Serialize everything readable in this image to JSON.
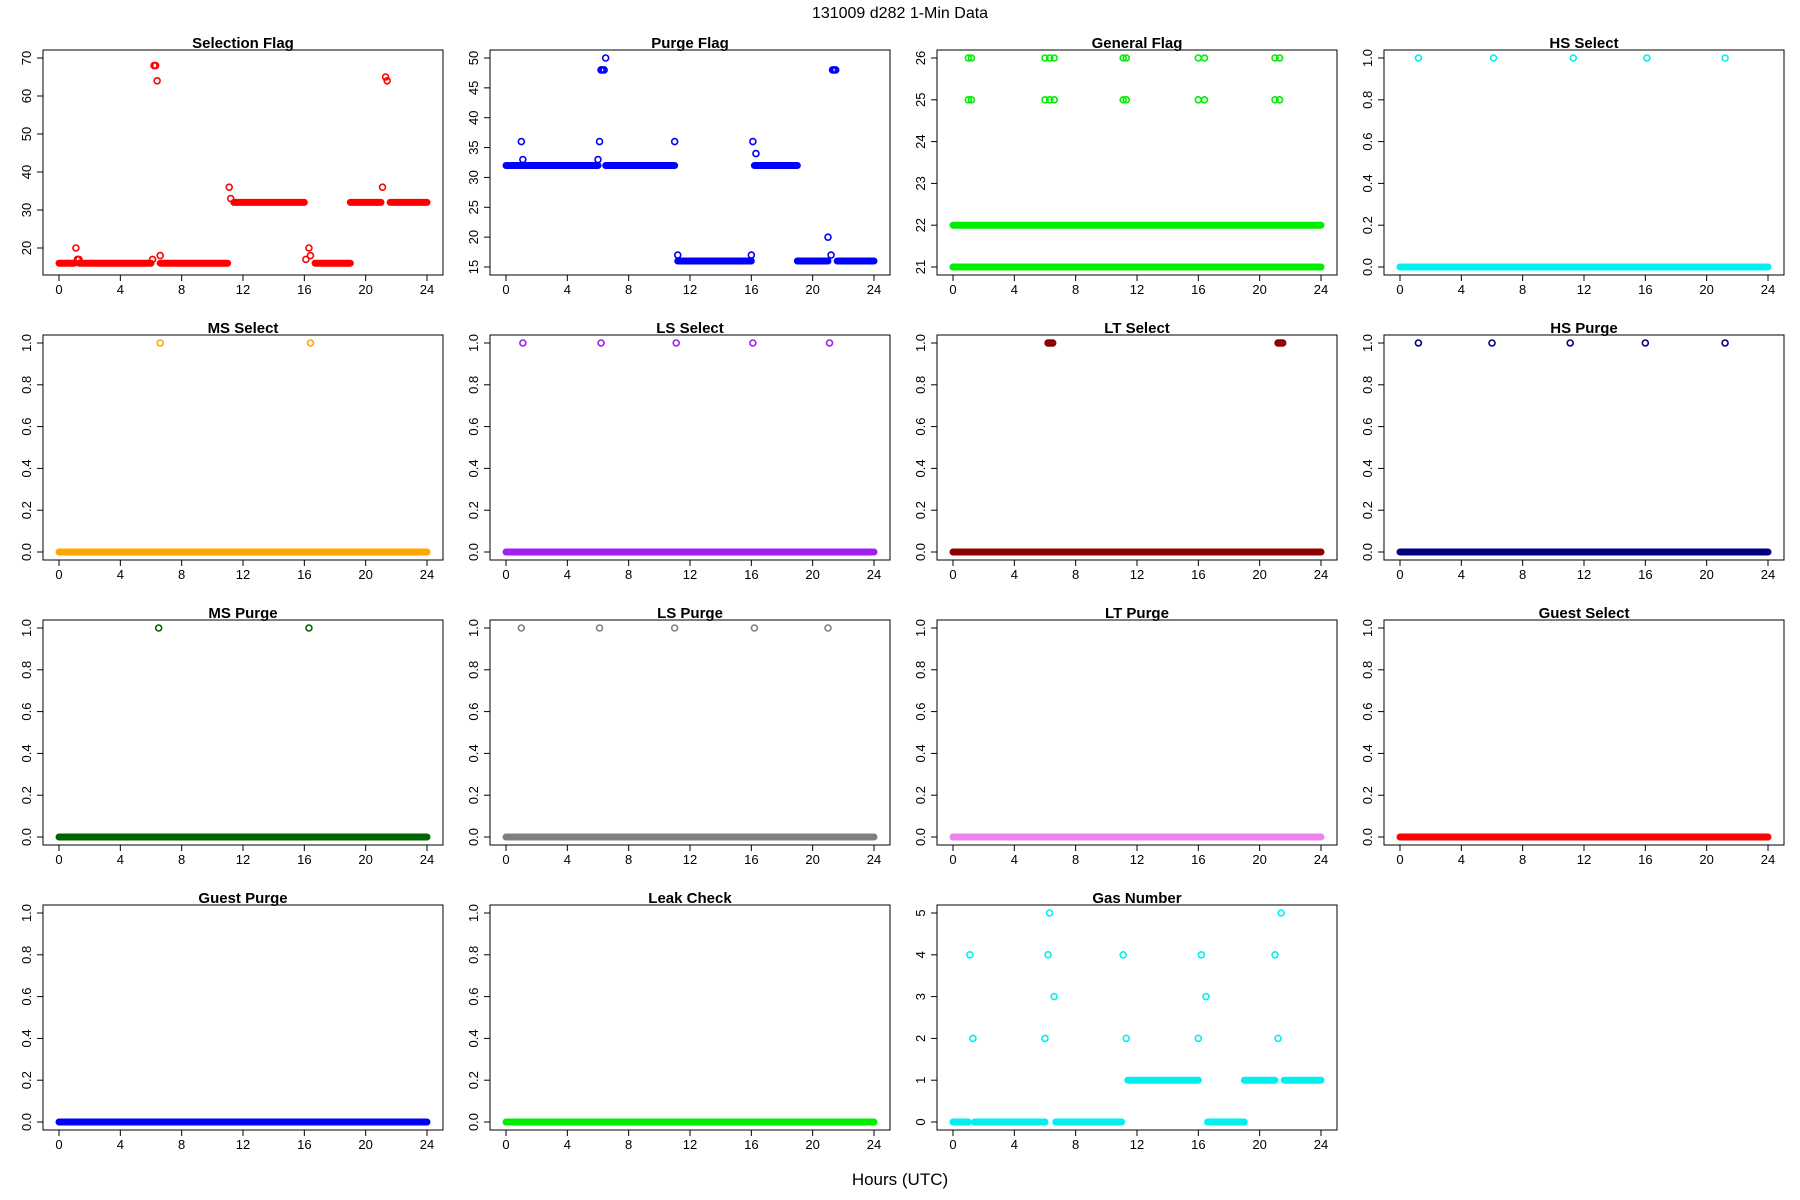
{
  "page": {
    "title": "131009   d282   1-Min Data",
    "xlabel": "Hours (UTC)"
  },
  "chart_data": [
    {
      "type": "scatter",
      "title": "Selection Flag",
      "color": "#ff0000",
      "xlim": [
        0,
        24
      ],
      "xticks": [
        0,
        4,
        8,
        12,
        16,
        20,
        24
      ],
      "ylim": [
        15,
        70
      ],
      "yticks": [
        20,
        30,
        40,
        50,
        60,
        70
      ],
      "runs": [
        {
          "x": [
            0,
            1.0
          ],
          "y": 16
        },
        {
          "x": 1.3,
          "y": 17
        },
        {
          "x": [
            1.3,
            6.0
          ],
          "y": 16
        },
        {
          "x": [
            6.6,
            11.0
          ],
          "y": 16
        },
        {
          "x": [
            11.4,
            16.0
          ],
          "y": 32
        },
        {
          "x": [
            16.7,
            19.0
          ],
          "y": 16
        },
        {
          "x": [
            19.0,
            21.0
          ],
          "y": 32
        },
        {
          "x": [
            21.6,
            24
          ],
          "y": 32
        }
      ],
      "points": [
        [
          1.1,
          20
        ],
        [
          1.2,
          17
        ],
        [
          6.1,
          17
        ],
        [
          6.2,
          68
        ],
        [
          6.3,
          68
        ],
        [
          6.4,
          64
        ],
        [
          6.6,
          18
        ],
        [
          11.1,
          36
        ],
        [
          11.2,
          33
        ],
        [
          16.1,
          17
        ],
        [
          16.3,
          20
        ],
        [
          16.4,
          18
        ],
        [
          21.1,
          36
        ],
        [
          21.3,
          65
        ],
        [
          21.4,
          64
        ]
      ]
    },
    {
      "type": "scatter",
      "title": "Purge Flag",
      "color": "#0000ff",
      "xlim": [
        0,
        24
      ],
      "xticks": [
        0,
        4,
        8,
        12,
        16,
        20,
        24
      ],
      "ylim": [
        15,
        50
      ],
      "yticks": [
        15,
        20,
        25,
        30,
        35,
        40,
        45,
        50
      ],
      "runs": [
        {
          "x": [
            0,
            6.0
          ],
          "y": 32
        },
        {
          "x": [
            6.5,
            11.0
          ],
          "y": 32
        },
        {
          "x": [
            11.2,
            16.0
          ],
          "y": 16
        },
        {
          "x": [
            16.2,
            19.0
          ],
          "y": 32
        },
        {
          "x": [
            19.0,
            21.0
          ],
          "y": 16
        },
        {
          "x": [
            21.6,
            24
          ],
          "y": 16
        }
      ],
      "points": [
        [
          1.0,
          36
        ],
        [
          1.1,
          33
        ],
        [
          6.1,
          36
        ],
        [
          6.0,
          33
        ],
        [
          6.2,
          48
        ],
        [
          6.3,
          48
        ],
        [
          6.4,
          48
        ],
        [
          6.5,
          50
        ],
        [
          11.0,
          36
        ],
        [
          11.2,
          17
        ],
        [
          16.0,
          17
        ],
        [
          16.1,
          36
        ],
        [
          16.3,
          34
        ],
        [
          21.0,
          20
        ],
        [
          21.2,
          17
        ],
        [
          21.3,
          48
        ],
        [
          21.4,
          48
        ],
        [
          21.5,
          48
        ]
      ]
    },
    {
      "type": "scatter",
      "title": "General Flag",
      "color": "#00ee00",
      "xlim": [
        0,
        24
      ],
      "xticks": [
        0,
        4,
        8,
        12,
        16,
        20,
        24
      ],
      "ylim": [
        21,
        26
      ],
      "yticks": [
        21,
        22,
        23,
        24,
        25,
        26
      ],
      "runs": [
        {
          "x": [
            0,
            24
          ],
          "y": 22
        },
        {
          "x": [
            0,
            24
          ],
          "y": 21
        }
      ],
      "points": [
        [
          1.0,
          26
        ],
        [
          1.2,
          26
        ],
        [
          1.0,
          25
        ],
        [
          1.2,
          25
        ],
        [
          6.0,
          26
        ],
        [
          6.3,
          26
        ],
        [
          6.6,
          26
        ],
        [
          6.0,
          25
        ],
        [
          6.3,
          25
        ],
        [
          6.6,
          25
        ],
        [
          11.1,
          26
        ],
        [
          11.3,
          26
        ],
        [
          11.1,
          25
        ],
        [
          11.3,
          25
        ],
        [
          16.0,
          26
        ],
        [
          16.4,
          26
        ],
        [
          16.0,
          25
        ],
        [
          16.4,
          25
        ],
        [
          21.0,
          26
        ],
        [
          21.3,
          26
        ],
        [
          21.0,
          25
        ],
        [
          21.3,
          25
        ]
      ]
    },
    {
      "type": "scatter",
      "title": "HS Select",
      "color": "#00f0f0",
      "xlim": [
        0,
        24
      ],
      "xticks": [
        0,
        4,
        8,
        12,
        16,
        20,
        24
      ],
      "ylim": [
        0,
        1
      ],
      "yticks": [
        0.0,
        0.2,
        0.4,
        0.6,
        0.8,
        1.0
      ],
      "runs": [
        {
          "x": [
            0,
            24
          ],
          "y": 0
        }
      ],
      "points": [
        [
          1.2,
          1
        ],
        [
          6.1,
          1
        ],
        [
          11.3,
          1
        ],
        [
          16.1,
          1
        ],
        [
          21.2,
          1
        ]
      ]
    },
    {
      "type": "scatter",
      "title": "MS Select",
      "color": "#ffa500",
      "xlim": [
        0,
        24
      ],
      "xticks": [
        0,
        4,
        8,
        12,
        16,
        20,
        24
      ],
      "ylim": [
        0,
        1
      ],
      "yticks": [
        0.0,
        0.2,
        0.4,
        0.6,
        0.8,
        1.0
      ],
      "runs": [
        {
          "x": [
            0,
            24
          ],
          "y": 0
        }
      ],
      "points": [
        [
          6.6,
          1
        ],
        [
          16.4,
          1
        ]
      ]
    },
    {
      "type": "scatter",
      "title": "LS Select",
      "color": "#a020f0",
      "xlim": [
        0,
        24
      ],
      "xticks": [
        0,
        4,
        8,
        12,
        16,
        20,
        24
      ],
      "ylim": [
        0,
        1
      ],
      "yticks": [
        0.0,
        0.2,
        0.4,
        0.6,
        0.8,
        1.0
      ],
      "runs": [
        {
          "x": [
            0,
            24
          ],
          "y": 0
        }
      ],
      "points": [
        [
          1.1,
          1
        ],
        [
          6.2,
          1
        ],
        [
          11.1,
          1
        ],
        [
          16.1,
          1
        ],
        [
          21.1,
          1
        ]
      ]
    },
    {
      "type": "scatter",
      "title": "LT Select",
      "color": "#8b0000",
      "xlim": [
        0,
        24
      ],
      "xticks": [
        0,
        4,
        8,
        12,
        16,
        20,
        24
      ],
      "ylim": [
        0,
        1
      ],
      "yticks": [
        0.0,
        0.2,
        0.4,
        0.6,
        0.8,
        1.0
      ],
      "runs": [
        {
          "x": [
            0,
            24
          ],
          "y": 0
        }
      ],
      "points": [
        [
          6.2,
          1
        ],
        [
          6.3,
          1
        ],
        [
          6.4,
          1
        ],
        [
          6.5,
          1
        ],
        [
          21.2,
          1
        ],
        [
          21.3,
          1
        ],
        [
          21.4,
          1
        ],
        [
          21.5,
          1
        ]
      ]
    },
    {
      "type": "scatter",
      "title": "HS Purge",
      "color": "#000080",
      "xlim": [
        0,
        24
      ],
      "xticks": [
        0,
        4,
        8,
        12,
        16,
        20,
        24
      ],
      "ylim": [
        0,
        1
      ],
      "yticks": [
        0.0,
        0.2,
        0.4,
        0.6,
        0.8,
        1.0
      ],
      "runs": [
        {
          "x": [
            0,
            24
          ],
          "y": 0
        }
      ],
      "points": [
        [
          1.2,
          1
        ],
        [
          6.0,
          1
        ],
        [
          11.1,
          1
        ],
        [
          16.0,
          1
        ],
        [
          21.2,
          1
        ]
      ]
    },
    {
      "type": "scatter",
      "title": "MS Purge",
      "color": "#006400",
      "xlim": [
        0,
        24
      ],
      "xticks": [
        0,
        4,
        8,
        12,
        16,
        20,
        24
      ],
      "ylim": [
        0,
        1
      ],
      "yticks": [
        0.0,
        0.2,
        0.4,
        0.6,
        0.8,
        1.0
      ],
      "runs": [
        {
          "x": [
            0,
            24
          ],
          "y": 0
        }
      ],
      "points": [
        [
          6.5,
          1
        ],
        [
          16.3,
          1
        ]
      ]
    },
    {
      "type": "scatter",
      "title": "LS Purge",
      "color": "#808080",
      "xlim": [
        0,
        24
      ],
      "xticks": [
        0,
        4,
        8,
        12,
        16,
        20,
        24
      ],
      "ylim": [
        0,
        1
      ],
      "yticks": [
        0.0,
        0.2,
        0.4,
        0.6,
        0.8,
        1.0
      ],
      "runs": [
        {
          "x": [
            0,
            24
          ],
          "y": 0
        }
      ],
      "points": [
        [
          1.0,
          1
        ],
        [
          6.1,
          1
        ],
        [
          11.0,
          1
        ],
        [
          16.2,
          1
        ],
        [
          21.0,
          1
        ]
      ]
    },
    {
      "type": "scatter",
      "title": "LT Purge",
      "color": "#ee82ee",
      "xlim": [
        0,
        24
      ],
      "xticks": [
        0,
        4,
        8,
        12,
        16,
        20,
        24
      ],
      "ylim": [
        0,
        1
      ],
      "yticks": [
        0.0,
        0.2,
        0.4,
        0.6,
        0.8,
        1.0
      ],
      "runs": [
        {
          "x": [
            0,
            24
          ],
          "y": 0
        }
      ],
      "points": []
    },
    {
      "type": "scatter",
      "title": "Guest Select",
      "color": "#ff0000",
      "xlim": [
        0,
        24
      ],
      "xticks": [
        0,
        4,
        8,
        12,
        16,
        20,
        24
      ],
      "ylim": [
        0,
        1
      ],
      "yticks": [
        0.0,
        0.2,
        0.4,
        0.6,
        0.8,
        1.0
      ],
      "runs": [
        {
          "x": [
            0,
            24
          ],
          "y": 0
        }
      ],
      "points": []
    },
    {
      "type": "scatter",
      "title": "Guest Purge",
      "color": "#0000ff",
      "xlim": [
        0,
        24
      ],
      "xticks": [
        0,
        4,
        8,
        12,
        16,
        20,
        24
      ],
      "ylim": [
        0,
        1
      ],
      "yticks": [
        0.0,
        0.2,
        0.4,
        0.6,
        0.8,
        1.0
      ],
      "runs": [
        {
          "x": [
            0,
            24
          ],
          "y": 0
        }
      ],
      "points": []
    },
    {
      "type": "scatter",
      "title": "Leak Check",
      "color": "#00ee00",
      "xlim": [
        0,
        24
      ],
      "xticks": [
        0,
        4,
        8,
        12,
        16,
        20,
        24
      ],
      "ylim": [
        0,
        1
      ],
      "yticks": [
        0.0,
        0.2,
        0.4,
        0.6,
        0.8,
        1.0
      ],
      "runs": [
        {
          "x": [
            0,
            24
          ],
          "y": 0
        }
      ],
      "points": []
    },
    {
      "type": "scatter",
      "title": "Gas Number",
      "color": "#00f0f0",
      "xlim": [
        0,
        24
      ],
      "xticks": [
        0,
        4,
        8,
        12,
        16,
        20,
        24
      ],
      "ylim": [
        0,
        5
      ],
      "yticks": [
        0,
        1,
        2,
        3,
        4,
        5
      ],
      "runs": [
        {
          "x": [
            0,
            1.0
          ],
          "y": 0
        },
        {
          "x": [
            1.4,
            6.0
          ],
          "y": 0
        },
        {
          "x": [
            6.7,
            11.0
          ],
          "y": 0
        },
        {
          "x": [
            11.4,
            16.0
          ],
          "y": 1
        },
        {
          "x": [
            16.6,
            19.0
          ],
          "y": 0
        },
        {
          "x": [
            19.0,
            21.0
          ],
          "y": 1
        },
        {
          "x": [
            21.6,
            24
          ],
          "y": 1
        }
      ],
      "points": [
        [
          1.1,
          4
        ],
        [
          1.3,
          2
        ],
        [
          6.0,
          2
        ],
        [
          6.2,
          4
        ],
        [
          6.3,
          5
        ],
        [
          6.6,
          3
        ],
        [
          11.1,
          4
        ],
        [
          11.3,
          2
        ],
        [
          16.0,
          2
        ],
        [
          16.2,
          4
        ],
        [
          16.5,
          3
        ],
        [
          21.0,
          4
        ],
        [
          21.2,
          2
        ],
        [
          21.4,
          5
        ]
      ]
    }
  ]
}
